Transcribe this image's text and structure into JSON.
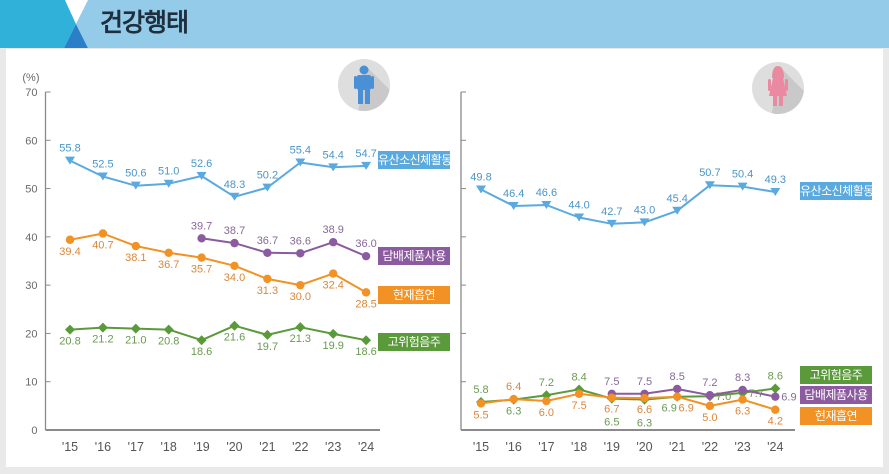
{
  "header": {
    "title": "건강행태"
  },
  "icons": {
    "male": "male-person-icon",
    "female": "female-person-icon"
  },
  "chart_data": [
    {
      "type": "line",
      "panel": "male",
      "title": "",
      "ylabel": "(%)",
      "xlabel": "",
      "ylim": [
        0,
        70
      ],
      "yticks": [
        0,
        10,
        20,
        30,
        40,
        50,
        60,
        70
      ],
      "ytick_labels_shown": true,
      "grid": false,
      "legend": "right-of-line-ends",
      "categories": [
        "'15",
        "'16",
        "'17",
        "'18",
        "'19",
        "'20",
        "'21",
        "'22",
        "'23",
        "'24"
      ],
      "series": [
        {
          "name": "유산소신체활동",
          "color": "#5aa9df",
          "label_color": "#4a95c8",
          "marker": "triangle-down",
          "values": [
            55.8,
            52.5,
            50.6,
            51.0,
            52.6,
            48.3,
            50.2,
            55.4,
            54.4,
            54.7
          ]
        },
        {
          "name": "담배제품사용",
          "color": "#8b5a9f",
          "label_color": "#87699a",
          "marker": "circle",
          "values": [
            null,
            null,
            null,
            null,
            39.7,
            38.7,
            36.7,
            36.6,
            38.9,
            36.0
          ]
        },
        {
          "name": "현재흡연",
          "color": "#f29124",
          "label_color": "#d9873a",
          "marker": "circle",
          "values": [
            39.4,
            40.7,
            38.1,
            36.7,
            35.7,
            34.0,
            31.3,
            30.0,
            32.4,
            28.5
          ]
        },
        {
          "name": "고위험음주",
          "color": "#5b9a3b",
          "label_color": "#6a9a52",
          "marker": "diamond",
          "values": [
            20.8,
            21.2,
            21.0,
            20.8,
            18.6,
            21.6,
            19.7,
            21.3,
            19.9,
            18.6
          ]
        }
      ]
    },
    {
      "type": "line",
      "panel": "female",
      "title": "",
      "ylabel": "",
      "xlabel": "",
      "ylim": [
        0,
        70
      ],
      "yticks": [
        0,
        10,
        20,
        30,
        40,
        50,
        60,
        70
      ],
      "ytick_labels_shown": false,
      "grid": false,
      "legend": "right-of-line-ends",
      "categories": [
        "'15",
        "'16",
        "'17",
        "'18",
        "'19",
        "'20",
        "'21",
        "'22",
        "'23",
        "'24"
      ],
      "series": [
        {
          "name": "유산소신체활동",
          "color": "#5aa9df",
          "label_color": "#4a95c8",
          "marker": "triangle-down",
          "values": [
            49.8,
            46.4,
            46.6,
            44.0,
            42.7,
            43.0,
            45.4,
            50.7,
            50.4,
            49.3
          ]
        },
        {
          "name": "고위험음주",
          "color": "#5b9a3b",
          "label_color": "#6a9a52",
          "marker": "diamond",
          "values": [
            5.8,
            6.3,
            7.2,
            8.4,
            6.5,
            6.3,
            6.9,
            7.0,
            7.7,
            8.6
          ]
        },
        {
          "name": "담배제품사용",
          "color": "#8b5a9f",
          "label_color": "#87699a",
          "marker": "circle",
          "values": [
            null,
            null,
            null,
            null,
            7.5,
            7.5,
            8.5,
            7.2,
            8.3,
            6.9
          ]
        },
        {
          "name": "현재흡연",
          "color": "#f29124",
          "label_color": "#d9873a",
          "marker": "circle",
          "values": [
            5.5,
            6.4,
            6.0,
            7.5,
            6.7,
            6.6,
            6.9,
            5.0,
            6.3,
            4.2
          ]
        }
      ]
    }
  ]
}
